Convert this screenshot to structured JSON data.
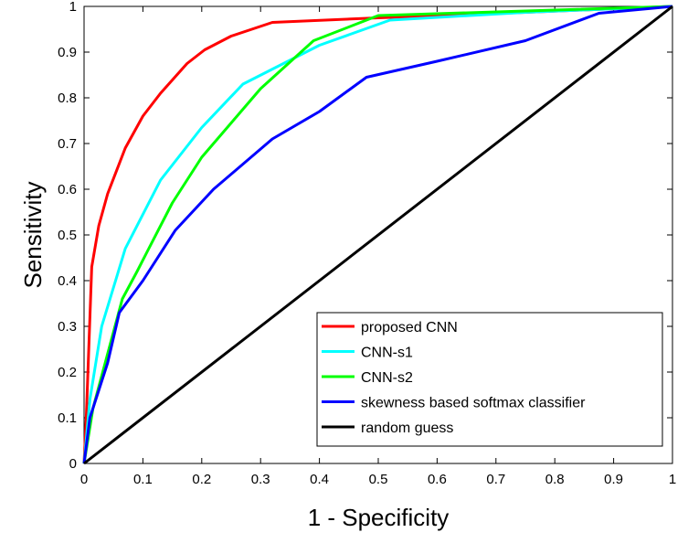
{
  "chart_data": {
    "type": "line",
    "xlabel": "1 - Specificity",
    "ylabel": "Sensitivity",
    "xlim": [
      0,
      1
    ],
    "ylim": [
      0,
      1
    ],
    "xticks": [
      0,
      0.1,
      0.2,
      0.3,
      0.4,
      0.5,
      0.6,
      0.7,
      0.8,
      0.9,
      1
    ],
    "yticks": [
      0,
      0.1,
      0.2,
      0.3,
      0.4,
      0.5,
      0.6,
      0.7,
      0.8,
      0.9,
      1
    ],
    "xtick_labels": [
      "0",
      "0.1",
      "0.2",
      "0.3",
      "0.4",
      "0.5",
      "0.6",
      "0.7",
      "0.8",
      "0.9",
      "1"
    ],
    "ytick_labels": [
      "0",
      "0.1",
      "0.2",
      "0.3",
      "0.4",
      "0.5",
      "0.6",
      "0.7",
      "0.8",
      "0.9",
      "1"
    ],
    "grid": false,
    "legend_position": "bottom-right",
    "series": [
      {
        "name": "proposed CNN",
        "color": "#ff0000",
        "x": [
          0,
          0.004,
          0.013,
          0.025,
          0.04,
          0.07,
          0.1,
          0.13,
          0.175,
          0.205,
          0.25,
          0.32,
          0.5,
          0.75,
          1
        ],
        "y": [
          0,
          0.11,
          0.43,
          0.52,
          0.59,
          0.69,
          0.76,
          0.81,
          0.875,
          0.905,
          0.935,
          0.965,
          0.975,
          0.987,
          1
        ]
      },
      {
        "name": "CNN-s1",
        "color": "#00ffff",
        "x": [
          0,
          0.01,
          0.03,
          0.07,
          0.13,
          0.2,
          0.27,
          0.4,
          0.52,
          0.75,
          1
        ],
        "y": [
          0,
          0.14,
          0.3,
          0.47,
          0.62,
          0.735,
          0.83,
          0.915,
          0.97,
          0.987,
          1
        ]
      },
      {
        "name": "CNN-s2",
        "color": "#00ff00",
        "x": [
          0,
          0.015,
          0.04,
          0.065,
          0.09,
          0.11,
          0.15,
          0.2,
          0.3,
          0.39,
          0.5,
          0.75,
          1
        ],
        "y": [
          0,
          0.12,
          0.24,
          0.36,
          0.42,
          0.47,
          0.57,
          0.67,
          0.82,
          0.925,
          0.98,
          0.99,
          1
        ]
      },
      {
        "name": "skewness based softmax classifier",
        "color": "#0000ff",
        "x": [
          0,
          0.01,
          0.04,
          0.06,
          0.1,
          0.155,
          0.22,
          0.32,
          0.4,
          0.48,
          0.6,
          0.75,
          0.875,
          1
        ],
        "y": [
          0,
          0.1,
          0.22,
          0.33,
          0.4,
          0.51,
          0.6,
          0.71,
          0.77,
          0.845,
          0.88,
          0.925,
          0.985,
          1
        ]
      },
      {
        "name": "random guess",
        "color": "#000000",
        "x": [
          0,
          1
        ],
        "y": [
          0,
          1
        ]
      }
    ]
  }
}
